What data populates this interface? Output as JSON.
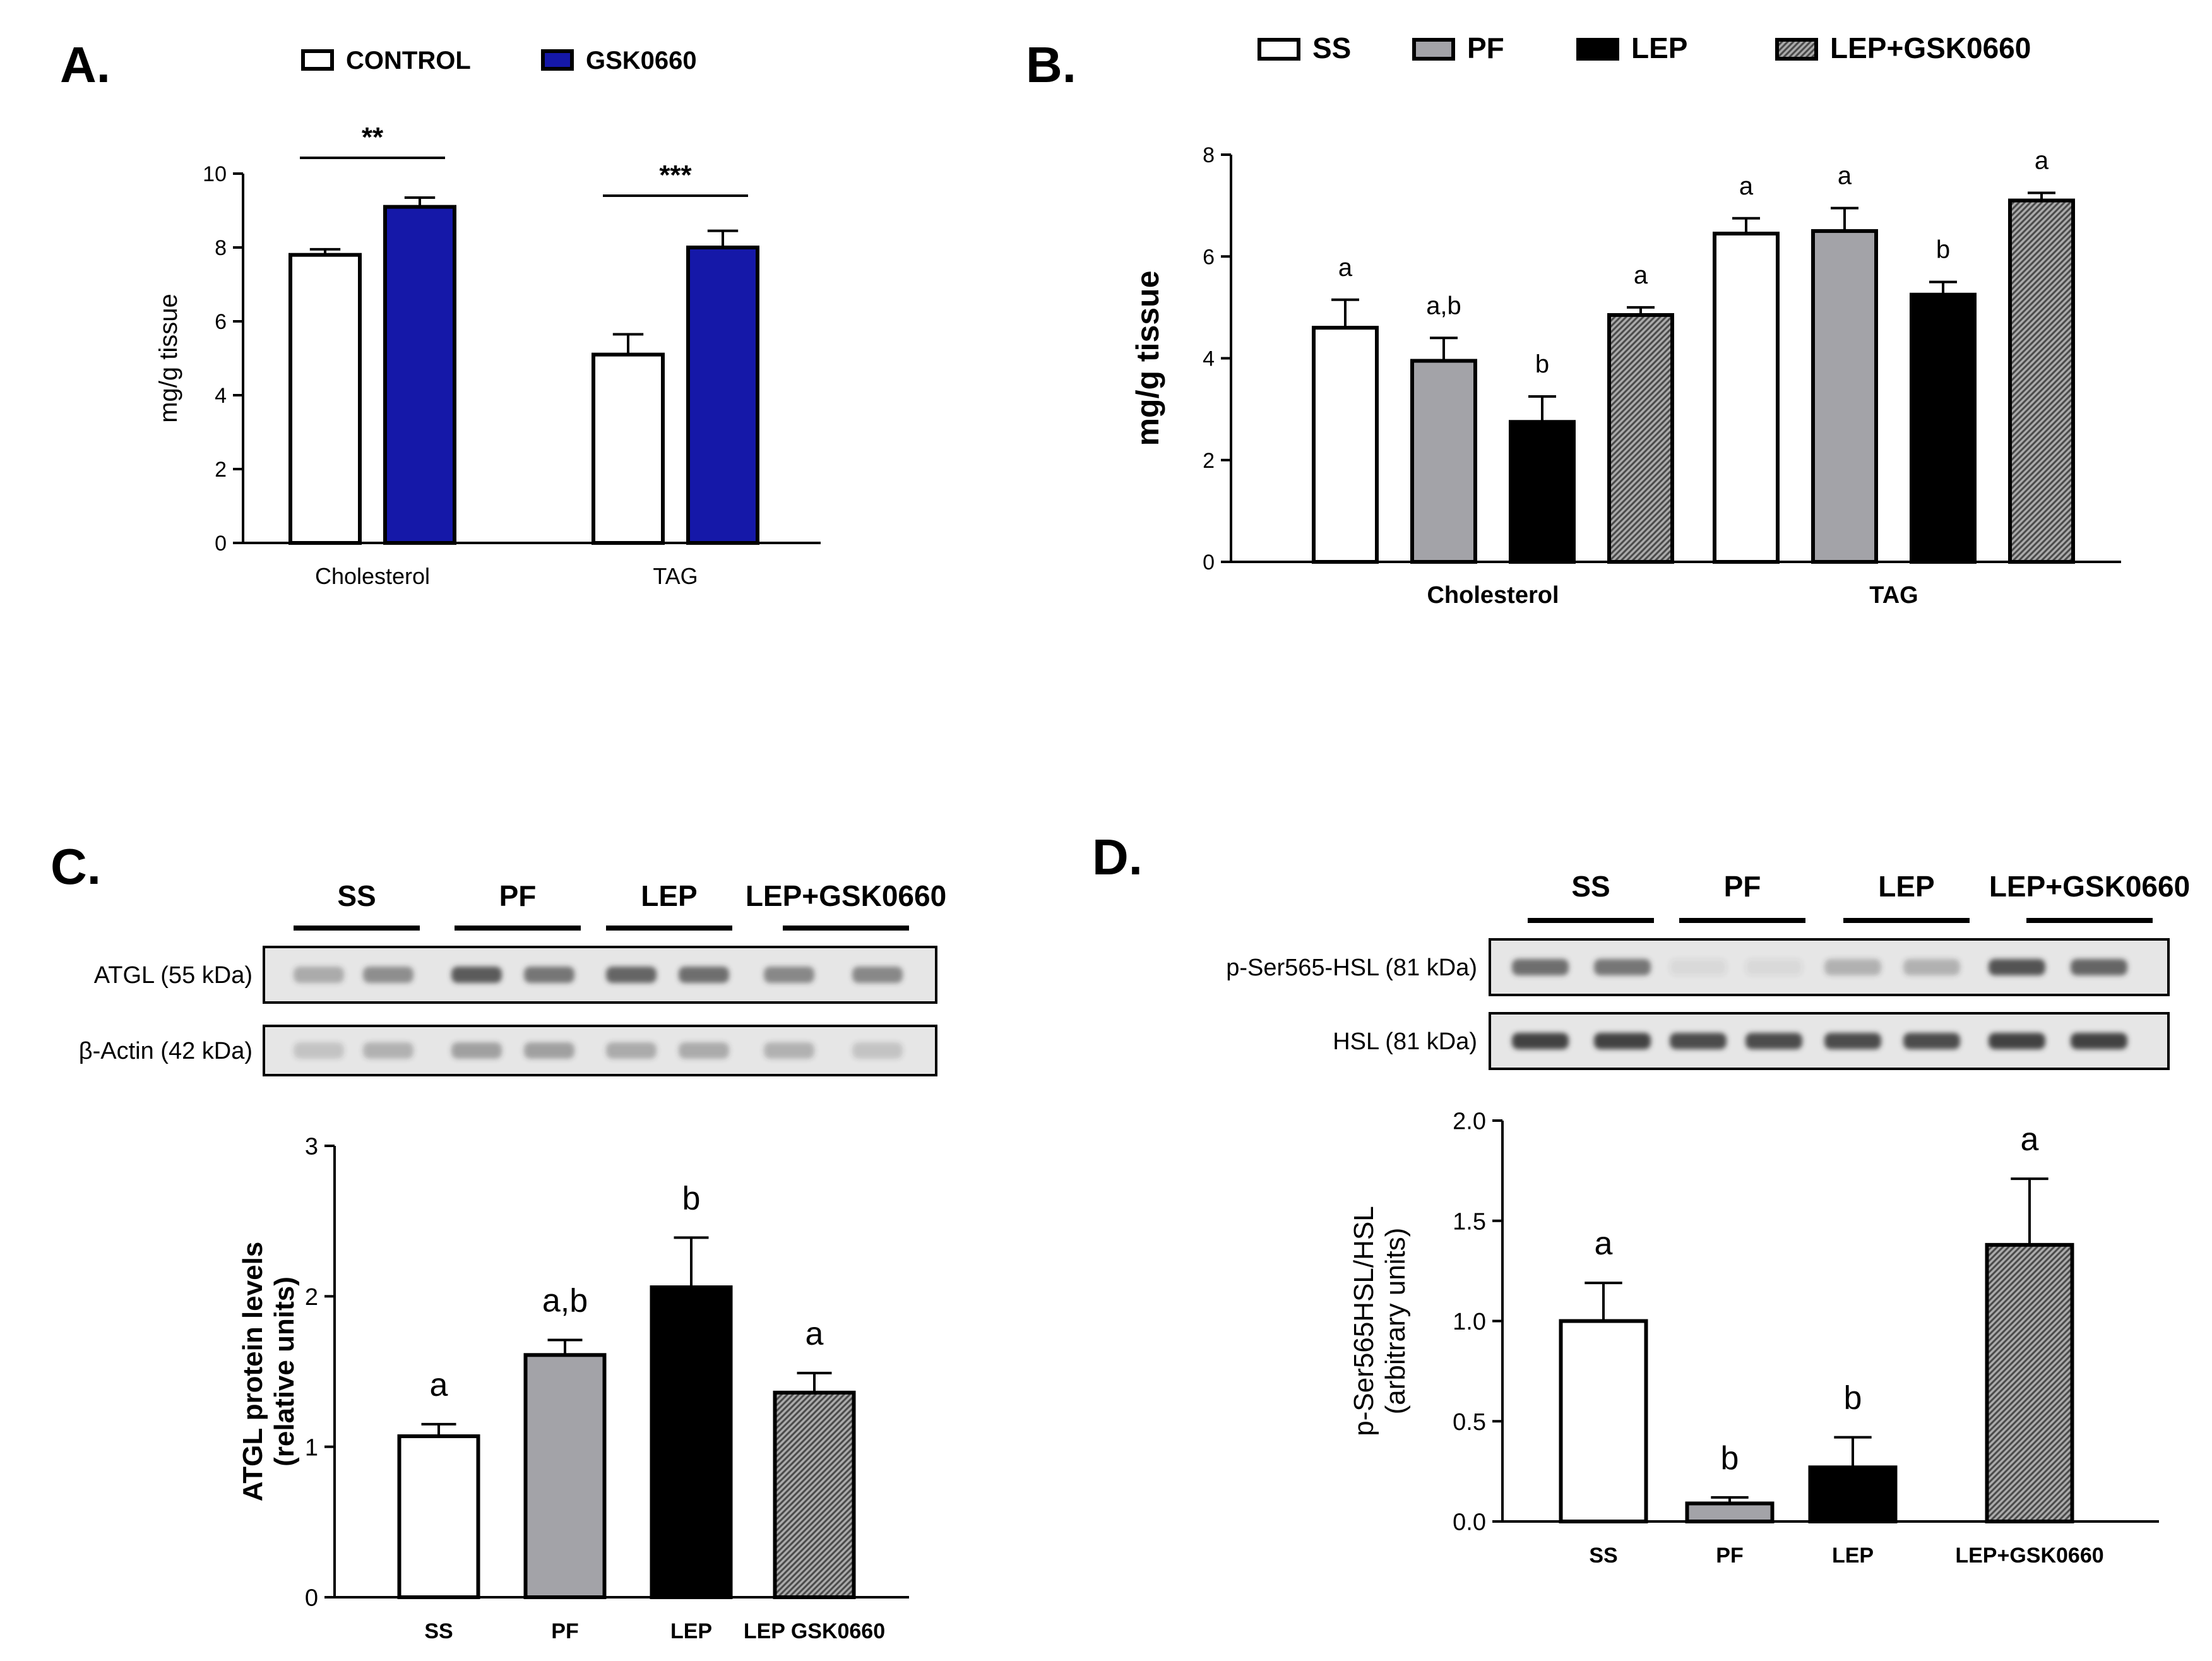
{
  "colors": {
    "white": "#ffffff",
    "blue": "#1518a8",
    "grey": "#a3a3a8",
    "black": "#000000",
    "stripe_bg": "#ababab",
    "stripe_fg": "#4a4a4a",
    "band": "#3a3a3a",
    "blot_bg": "#e6e6e6"
  },
  "panels": {
    "A": {
      "label": "A."
    },
    "B": {
      "label": "B."
    },
    "C": {
      "label": "C.",
      "blot_groups": [
        "SS",
        "PF",
        "LEP",
        "LEP+GSK0660"
      ],
      "blot_rows": [
        {
          "label": "ATGL (55 kDa)",
          "intensities": [
            0.35,
            0.5,
            0.8,
            0.65,
            0.75,
            0.7,
            0.55,
            0.55
          ]
        },
        {
          "label": "β-Actin (42 kDa)",
          "intensities": [
            0.2,
            0.3,
            0.4,
            0.4,
            0.35,
            0.35,
            0.3,
            0.2
          ]
        }
      ]
    },
    "D": {
      "label": "D.",
      "blot_groups": [
        "SS",
        "PF",
        "LEP",
        "LEP+GSK0660"
      ],
      "blot_rows": [
        {
          "label": "p-Ser565-HSL (81 kDa)",
          "intensities": [
            0.7,
            0.65,
            0.08,
            0.08,
            0.3,
            0.3,
            0.85,
            0.75
          ]
        },
        {
          "label": "HSL (81 kDa)",
          "intensities": [
            0.95,
            0.95,
            0.9,
            0.9,
            0.9,
            0.9,
            0.95,
            0.95
          ]
        }
      ]
    }
  },
  "chart_data": [
    {
      "id": "A",
      "type": "bar",
      "title": "",
      "ylabel": "mg/g tissue",
      "xlabel": "",
      "categories": [
        "Cholesterol",
        "TAG"
      ],
      "ylim": [
        0,
        10
      ],
      "yticks": [
        "0",
        "2",
        "4",
        "6",
        "8",
        "10"
      ],
      "legend": {
        "position": "top",
        "entries": [
          "CONTROL",
          "GSK0660"
        ]
      },
      "series": [
        {
          "name": "CONTROL",
          "fill": "white",
          "values": [
            7.8,
            5.1
          ],
          "errors": [
            0.15,
            0.55
          ]
        },
        {
          "name": "GSK0660",
          "fill": "blue",
          "values": [
            9.1,
            8.0
          ],
          "errors": [
            0.25,
            0.45
          ]
        }
      ],
      "significance": [
        {
          "category": "Cholesterol",
          "text": "**"
        },
        {
          "category": "TAG",
          "text": "***"
        }
      ]
    },
    {
      "id": "B",
      "type": "bar",
      "title": "",
      "ylabel": "mg/g tissue",
      "xlabel": "",
      "categories": [
        "Cholesterol",
        "TAG"
      ],
      "ylim": [
        0,
        8
      ],
      "yticks": [
        "0",
        "2",
        "4",
        "6",
        "8"
      ],
      "legend": {
        "position": "top",
        "entries": [
          "SS",
          "PF",
          "LEP",
          "LEP+GSK0660"
        ]
      },
      "series": [
        {
          "name": "SS",
          "fill": "white",
          "values": [
            4.6,
            6.45
          ],
          "errors": [
            0.55,
            0.3
          ],
          "letters": [
            "a",
            "a"
          ]
        },
        {
          "name": "PF",
          "fill": "grey",
          "values": [
            3.95,
            6.5
          ],
          "errors": [
            0.45,
            0.45
          ],
          "letters": [
            "a,b",
            "a"
          ]
        },
        {
          "name": "LEP",
          "fill": "black",
          "values": [
            2.75,
            5.25
          ],
          "errors": [
            0.5,
            0.25
          ],
          "letters": [
            "b",
            "b"
          ]
        },
        {
          "name": "LEP+GSK0660",
          "fill": "stripe",
          "values": [
            4.85,
            7.1
          ],
          "errors": [
            0.15,
            0.15
          ],
          "letters": [
            "a",
            "a"
          ]
        }
      ]
    },
    {
      "id": "C",
      "type": "bar",
      "title": "",
      "ylabel": "ATGL protein levels (relative units)",
      "ylabel_lines": [
        "ATGL protein levels",
        "(relative units)"
      ],
      "xlabel": "",
      "categories": [
        "SS",
        "PF",
        "LEP",
        "LEP GSK0660"
      ],
      "ylim": [
        0,
        3
      ],
      "yticks": [
        "0",
        "1",
        "2",
        "3"
      ],
      "fills": [
        "white",
        "grey",
        "black",
        "stripe"
      ],
      "values": [
        1.07,
        1.61,
        2.06,
        1.36
      ],
      "errors": [
        0.08,
        0.1,
        0.33,
        0.13
      ],
      "letters": [
        "a",
        "a,b",
        "b",
        "a"
      ]
    },
    {
      "id": "D",
      "type": "bar",
      "title": "",
      "ylabel": "p-Ser565HSL/HSL (arbitrary units)",
      "ylabel_lines": [
        "p-Ser565HSL/HSL",
        "(arbitrary units)"
      ],
      "xlabel": "",
      "categories": [
        "SS",
        "PF",
        "LEP",
        "LEP+GSK0660"
      ],
      "ylim": [
        0,
        2.0
      ],
      "yticks": [
        "0.0",
        "0.5",
        "1.0",
        "1.5",
        "2.0"
      ],
      "fills": [
        "white",
        "grey",
        "black",
        "stripe"
      ],
      "values": [
        1.0,
        0.09,
        0.27,
        1.38
      ],
      "errors": [
        0.19,
        0.03,
        0.15,
        0.33
      ],
      "letters": [
        "a",
        "b",
        "b",
        "a"
      ]
    }
  ]
}
